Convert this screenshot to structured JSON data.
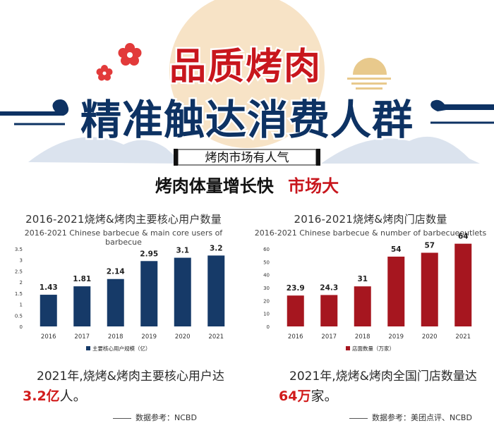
{
  "header": {
    "title_line1": "品质烤肉",
    "title_line2": "精准触达消费人群",
    "badge": "烤肉市场有人气",
    "subtitle_black": "烤肉体量增长快",
    "subtitle_red": "市场大"
  },
  "colors": {
    "navy": "#0d3263",
    "red_primary": "#c8161d",
    "chart_red": "#a6161f",
    "gold": "#e8c98c",
    "sun": "#f3d9b2"
  },
  "chart_data": [
    {
      "type": "bar",
      "title": "2016-2021烧烤&烤肉主要核心用户数量",
      "subtitle": "2016-2021 Chinese barbecue & main core users of barbecue",
      "categories": [
        "2016",
        "2017",
        "2018",
        "2019",
        "2020",
        "2021"
      ],
      "series": [
        {
          "name": "主要核心用户规模（亿）",
          "values": [
            1.43,
            1.81,
            2.14,
            2.95,
            3.1,
            3.2
          ]
        }
      ],
      "value_labels": [
        "1.43",
        "1.81",
        "2.14",
        "2.95",
        "3.1",
        "3.2"
      ],
      "yticks": [
        "0",
        "0.5",
        "1",
        "1.5",
        "2",
        "2.5",
        "3",
        "3.5"
      ],
      "ylim": [
        0,
        3.5
      ],
      "color": "#163a68",
      "legend_position": "bottom"
    },
    {
      "type": "bar",
      "title": "2016-2021烧烤&烤肉门店数量",
      "subtitle": "2016-2021 Chinese barbecue & number of barbecueoutlets",
      "categories": [
        "2016",
        "2017",
        "2018",
        "2019",
        "2020",
        "2021"
      ],
      "series": [
        {
          "name": "店面数量（万家）",
          "values": [
            23.9,
            24.3,
            31,
            54,
            57,
            64
          ]
        }
      ],
      "value_labels": [
        "23.9",
        "24.3",
        "31",
        "54",
        "57",
        "64"
      ],
      "yticks": [
        "0",
        "10",
        "20",
        "30",
        "40",
        "50",
        "60"
      ],
      "ylim": [
        0,
        60
      ],
      "color": "#a6161f",
      "legend_position": "bottom"
    }
  ],
  "summaries": [
    {
      "text": "2021年,烧烤&烤肉主要核心用户达",
      "big_red": "3.2亿",
      "big_black": "人。",
      "source": "数据参考：NCBD"
    },
    {
      "text": "2021年,烧烤&烤肉全国门店数量达",
      "big_red": "64万",
      "big_black": "家。",
      "source": "数据参考：美团点评、NCBD"
    }
  ]
}
